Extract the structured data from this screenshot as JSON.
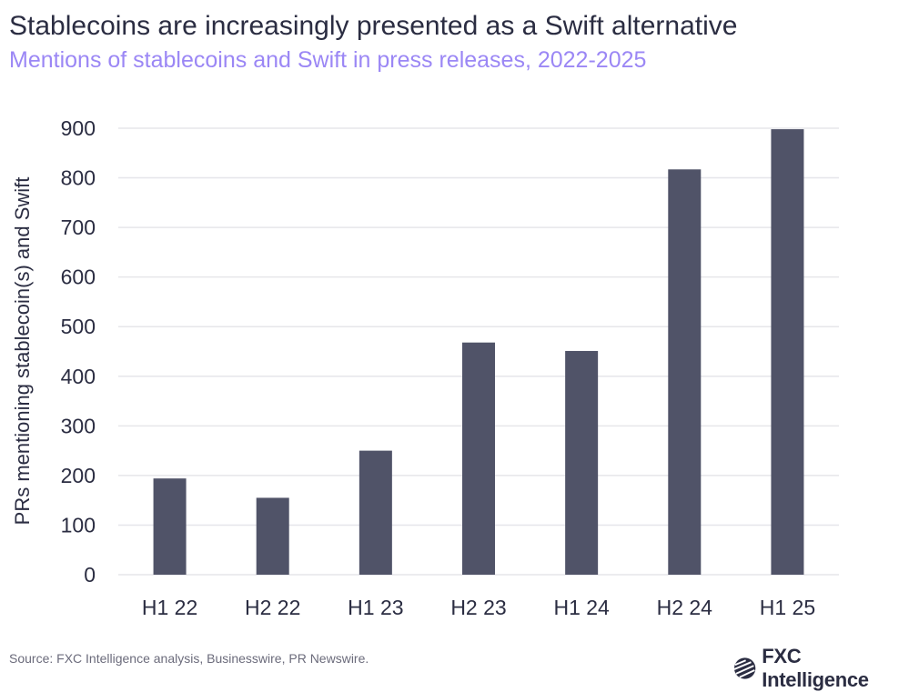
{
  "title": "Stablecoins are increasingly presented as a Swift alternative",
  "subtitle": "Mentions of stablecoins and Swift in press releases, 2022-2025",
  "source": "Source: FXC Intelligence analysis, Businesswire, PR Newswire.",
  "logo": {
    "text": "FXC Intelligence",
    "icon": "fxc-globe-logo-icon"
  },
  "colors": {
    "bar": "#505368",
    "title": "#2b2d42",
    "subtitle": "#9b87f5",
    "grid": "#e6e6ea"
  },
  "chart_data": {
    "type": "bar",
    "title": "",
    "xlabel": "",
    "ylabel": "PRs mentioning stablecoin(s) and Swift",
    "categories": [
      "H1 22",
      "H2 22",
      "H1 23",
      "H2 23",
      "H1 24",
      "H2 24",
      "H1 25"
    ],
    "values": [
      194,
      155,
      250,
      468,
      451,
      817,
      898
    ],
    "ylim": [
      0,
      900
    ],
    "yticks": [
      "0",
      "100",
      "200",
      "300",
      "400",
      "500",
      "600",
      "700",
      "800",
      "900"
    ],
    "grid": true,
    "legend": "none"
  }
}
